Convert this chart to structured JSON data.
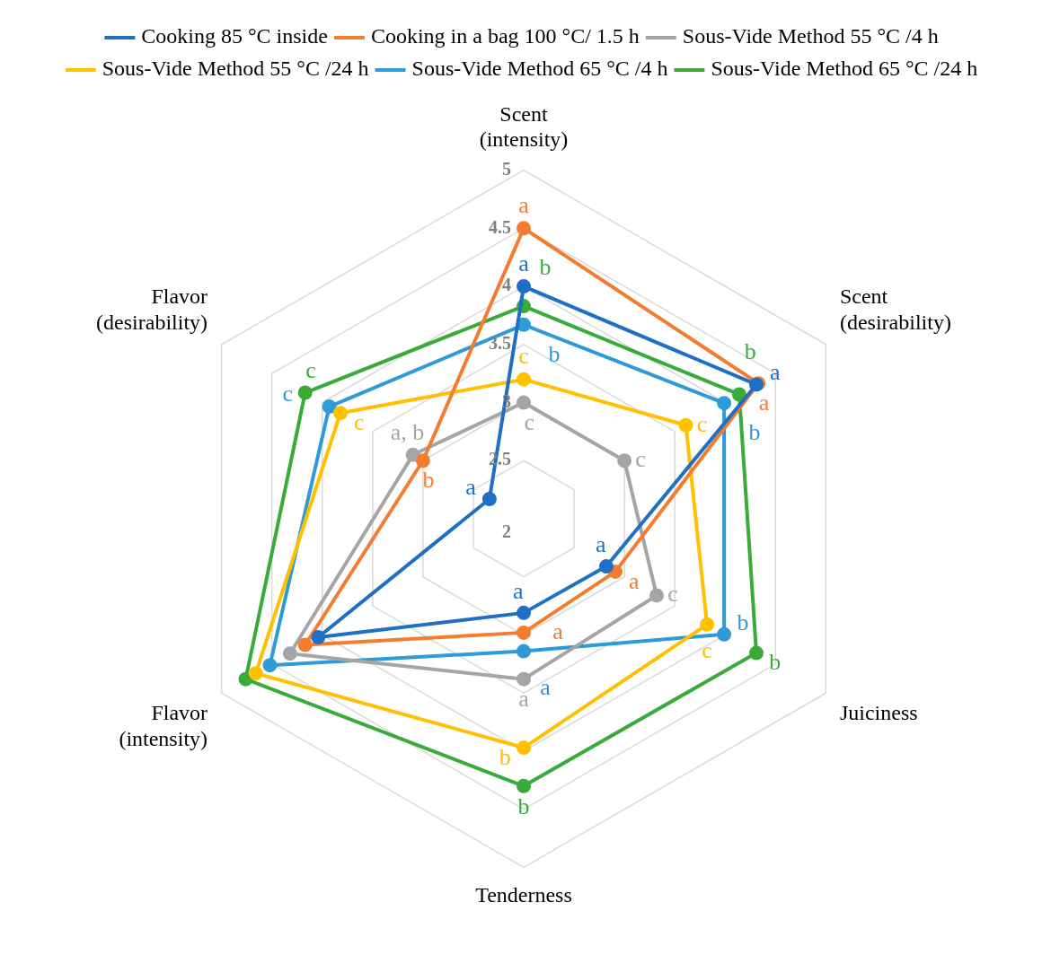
{
  "chart_data": {
    "type": "radar",
    "categories": [
      "Scent (intensity)",
      "Scent (desirability)",
      "Juiciness",
      "Tenderness",
      "Flavor (intensity)",
      "Flavor (desirability)"
    ],
    "ylim": [
      2,
      5
    ],
    "yticks": [
      2,
      2.5,
      3,
      3.5,
      4,
      4.5,
      5
    ],
    "grid": true,
    "legend": "top",
    "marker": "circle",
    "line_style": "solid",
    "series": [
      {
        "name": "Cooking 85 °C inside",
        "color": "#1f6fc5",
        "values": [
          4.0,
          4.31,
          2.82,
          2.81,
          4.04,
          2.34
        ],
        "value_labels": [
          "a",
          "a",
          "a",
          "a",
          null,
          "a"
        ]
      },
      {
        "name": "Cooking in a bag 100 °C/ 1.5 h",
        "color": "#f47c30",
        "values": [
          4.5,
          4.33,
          2.91,
          2.98,
          4.17,
          3.0
        ],
        "value_labels": [
          "a",
          "a",
          "a",
          "a",
          null,
          "b"
        ]
      },
      {
        "name": "Sous-Vide Method 55 °C /4 h",
        "color": "#a5a5a5",
        "values": [
          3.0,
          3.0,
          3.32,
          3.38,
          4.32,
          3.1
        ],
        "value_labels": [
          "c",
          "c",
          "c",
          "a",
          null,
          "a, b"
        ]
      },
      {
        "name": "Sous-Vide Method 55 °C /24 h",
        "color": "#ffc000",
        "values": [
          3.2,
          3.61,
          3.82,
          3.97,
          4.66,
          3.82
        ],
        "value_labels": [
          "c",
          "c",
          "c",
          "b",
          null,
          "c"
        ]
      },
      {
        "name": "Sous-Vide Method 65 °C /4 h",
        "color": "#2e9bd6",
        "values": [
          3.67,
          3.99,
          3.99,
          3.14,
          4.52,
          3.93
        ],
        "value_labels": [
          "b",
          "b",
          "b",
          "a",
          null,
          "c"
        ]
      },
      {
        "name": "Sous-Vide Method 65 °C /24 h",
        "color": "#3aab3a",
        "values": [
          3.83,
          4.14,
          4.31,
          4.3,
          4.76,
          4.17
        ],
        "value_labels": [
          "b",
          "b",
          "b",
          "b",
          null,
          "c"
        ]
      }
    ]
  }
}
